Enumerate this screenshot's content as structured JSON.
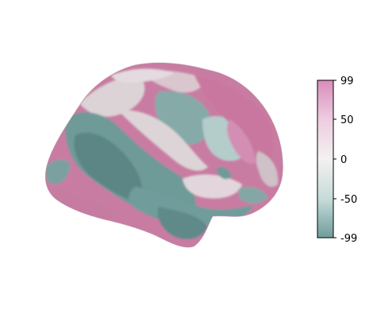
{
  "colorbar": {
    "ticks": [
      {
        "value": 99,
        "label": "99"
      },
      {
        "value": 50,
        "label": "50"
      },
      {
        "value": 0,
        "label": "0"
      },
      {
        "value": -50,
        "label": "-50"
      },
      {
        "value": -99,
        "label": "-99"
      }
    ],
    "range": [
      -99,
      99
    ],
    "colors": {
      "max": "#d98dbb",
      "mid_high": "#edcde0",
      "zero": "#f3f1f1",
      "mid_low": "#c6dcda",
      "min": "#6f9d9b"
    }
  },
  "surface": {
    "view": "lateral",
    "hemisphere_colors": {
      "pink": "#c9779f",
      "light_pink": "#ddb7c9",
      "light": "#dcd6d8",
      "pale_teal": "#b4ccca",
      "teal": "#6e9a98",
      "dark_teal": "#5b8685"
    }
  }
}
